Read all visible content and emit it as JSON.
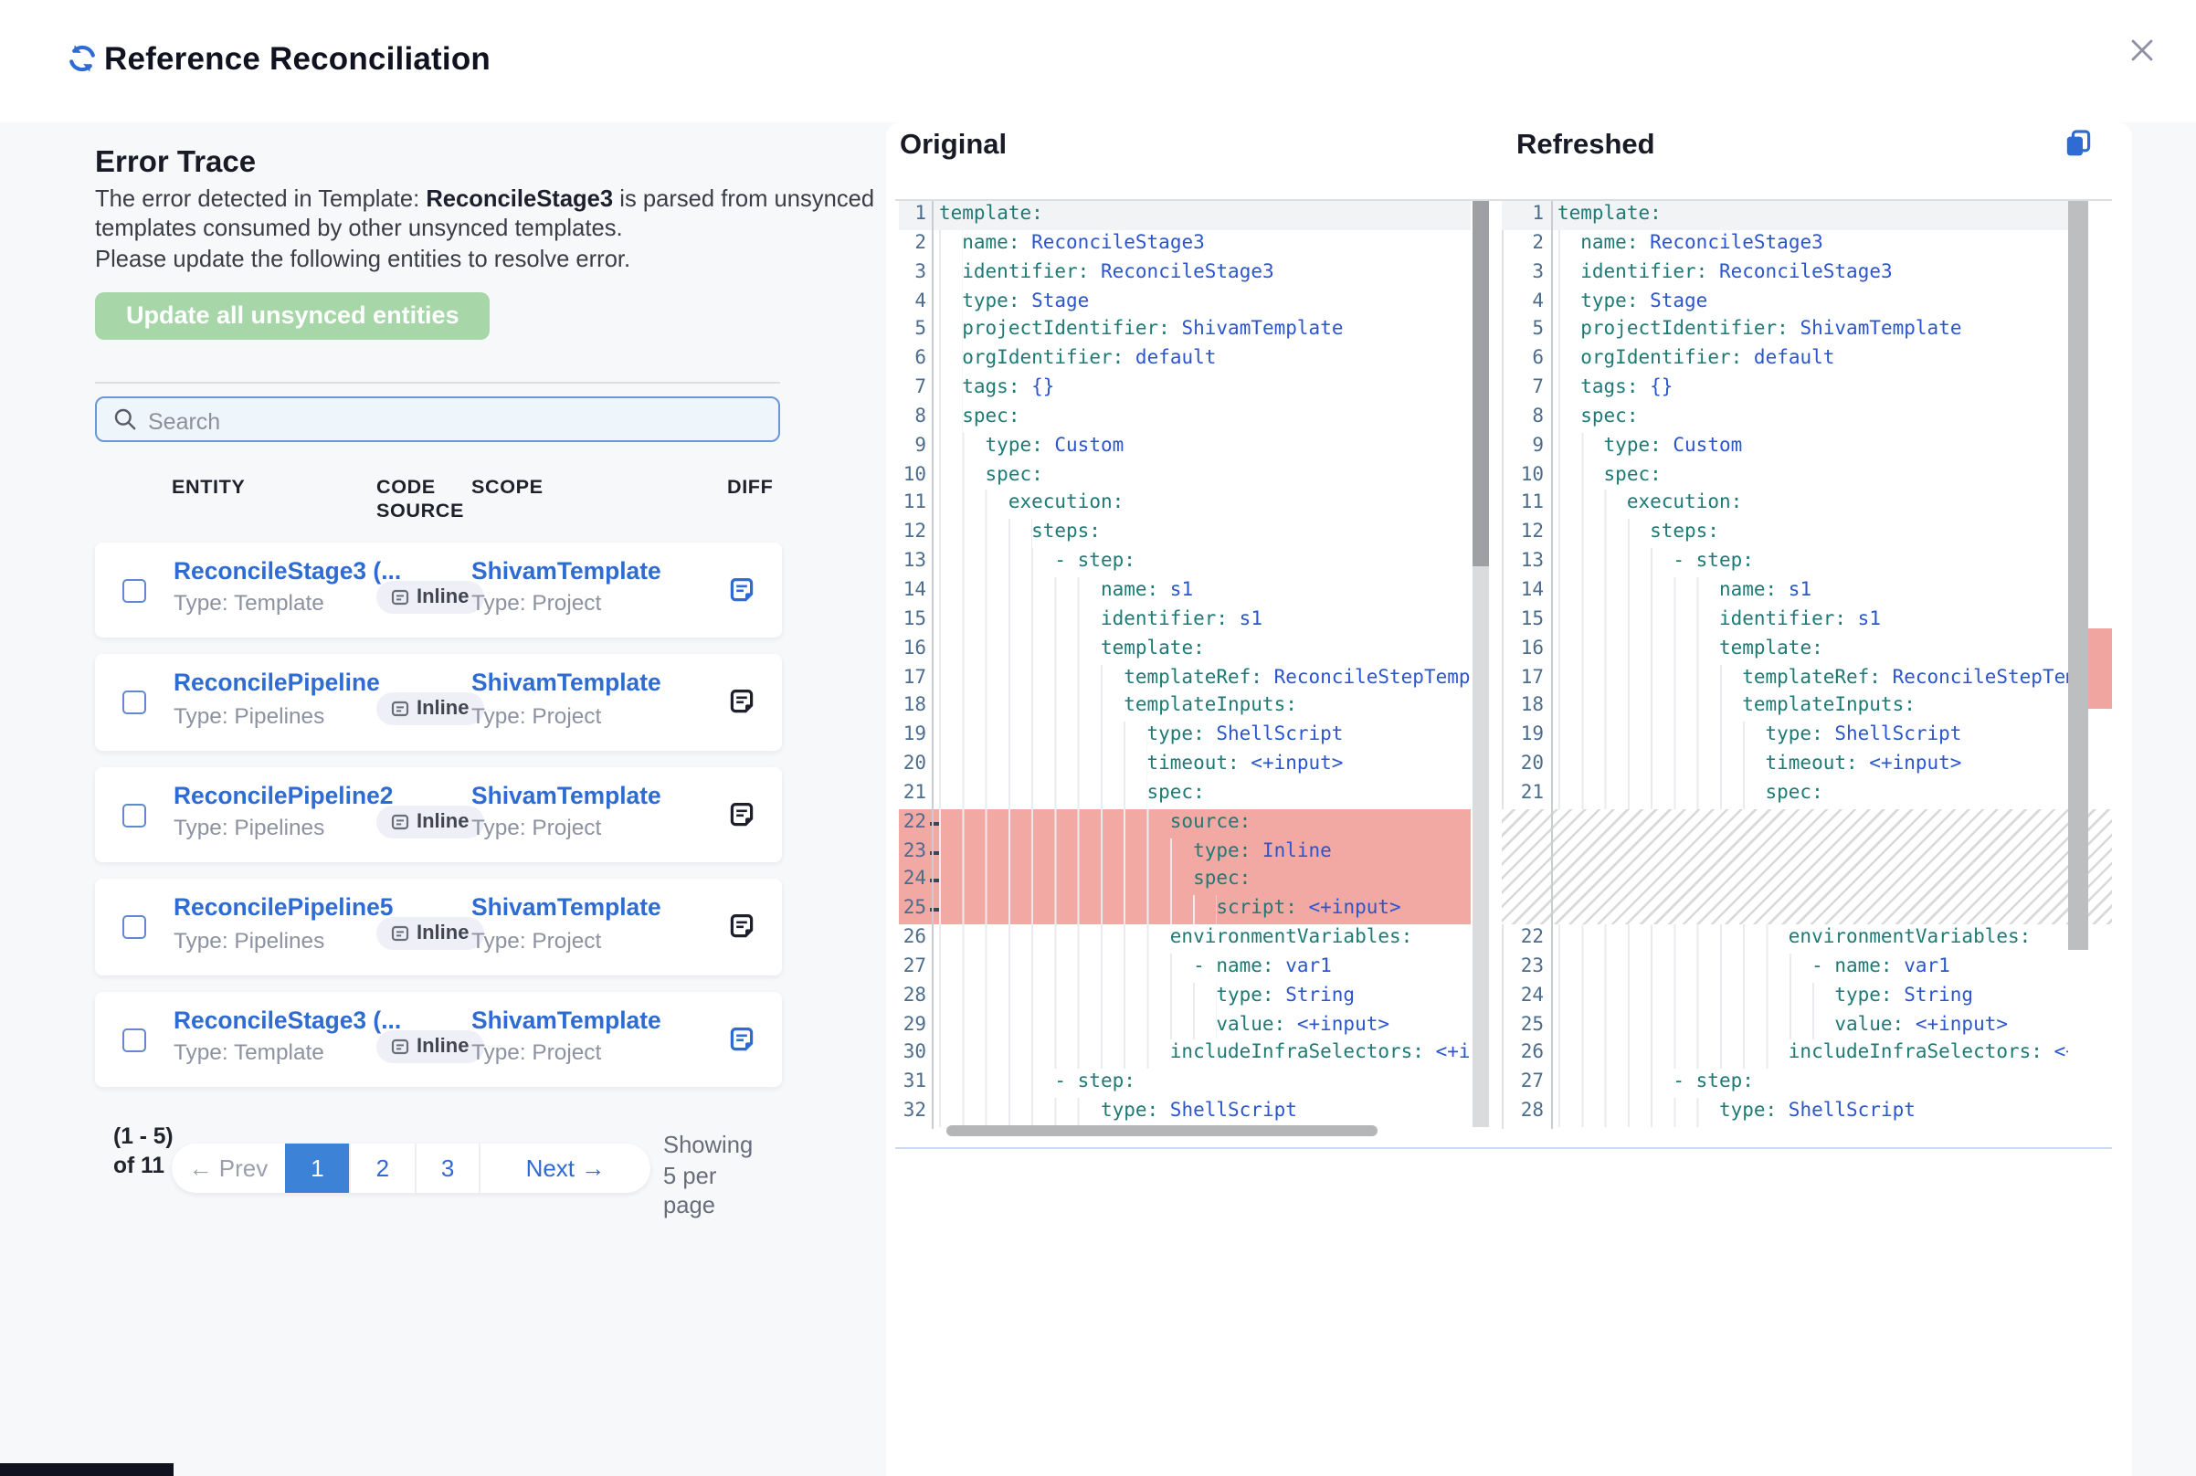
{
  "header": {
    "title": "Reference Reconciliation"
  },
  "error_trace": {
    "title": "Error Trace",
    "description_prefix": "The error detected in Template: ",
    "template_name": "ReconcileStage3",
    "description_suffix": " is parsed from unsynced templates consumed by other unsynced templates.",
    "instruction": "Please update the following entities to resolve error.",
    "update_button_label": "Update all unsynced entities"
  },
  "search": {
    "placeholder": "Search"
  },
  "table": {
    "headers": {
      "entity": "ENTITY",
      "code_source": "CODE SOURCE",
      "scope": "SCOPE",
      "diff": "DIFF"
    },
    "rows": [
      {
        "entity_name": "ReconcileStage3 (...",
        "entity_type": "Type: Template",
        "code_source": "Inline",
        "scope_name": "ShivamTemplate",
        "scope_type": "Type: Project",
        "diff_icon_color": "#2e6bd2"
      },
      {
        "entity_name": "ReconcilePipeline",
        "entity_type": "Type: Pipelines",
        "code_source": "Inline",
        "scope_name": "ShivamTemplate",
        "scope_type": "Type: Project",
        "diff_icon_color": "#1d1f2c"
      },
      {
        "entity_name": "ReconcilePipeline2",
        "entity_type": "Type: Pipelines",
        "code_source": "Inline",
        "scope_name": "ShivamTemplate",
        "scope_type": "Type: Project",
        "diff_icon_color": "#1d1f2c"
      },
      {
        "entity_name": "ReconcilePipeline5",
        "entity_type": "Type: Pipelines",
        "code_source": "Inline",
        "scope_name": "ShivamTemplate",
        "scope_type": "Type: Project",
        "diff_icon_color": "#1d1f2c"
      },
      {
        "entity_name": "ReconcileStage3 (...",
        "entity_type": "Type: Template",
        "code_source": "Inline",
        "scope_name": "ShivamTemplate",
        "scope_type": "Type: Project",
        "diff_icon_color": "#2e6bd2"
      }
    ]
  },
  "pagination": {
    "summary": "(1 - 5) of 11",
    "prev_label": "← Prev",
    "pages": [
      "1",
      "2",
      "3"
    ],
    "active_page": "1",
    "next_label": "Next →",
    "per_page_note": "Showing 5 per page"
  },
  "diff": {
    "original": {
      "title": "Original",
      "lines": [
        {
          "n": 1,
          "i": 0,
          "k": "template"
        },
        {
          "n": 2,
          "i": 2,
          "k": "name",
          "v": "ReconcileStage3"
        },
        {
          "n": 3,
          "i": 2,
          "k": "identifier",
          "v": "ReconcileStage3"
        },
        {
          "n": 4,
          "i": 2,
          "k": "type",
          "v": "Stage"
        },
        {
          "n": 5,
          "i": 2,
          "k": "projectIdentifier",
          "v": "ShivamTemplate"
        },
        {
          "n": 6,
          "i": 2,
          "k": "orgIdentifier",
          "v": "default"
        },
        {
          "n": 7,
          "i": 2,
          "k": "tags",
          "v": "{}"
        },
        {
          "n": 8,
          "i": 2,
          "k": "spec"
        },
        {
          "n": 9,
          "i": 4,
          "k": "type",
          "v": "Custom"
        },
        {
          "n": 10,
          "i": 4,
          "k": "spec"
        },
        {
          "n": 11,
          "i": 6,
          "k": "execution"
        },
        {
          "n": 12,
          "i": 8,
          "k": "steps"
        },
        {
          "n": 13,
          "i": 10,
          "dash": true,
          "k": "step"
        },
        {
          "n": 14,
          "i": 14,
          "k": "name",
          "v": "s1"
        },
        {
          "n": 15,
          "i": 14,
          "k": "identifier",
          "v": "s1"
        },
        {
          "n": 16,
          "i": 14,
          "k": "template"
        },
        {
          "n": 17,
          "i": 16,
          "k": "templateRef",
          "v": "ReconcileStepTemplate"
        },
        {
          "n": 18,
          "i": 16,
          "k": "templateInputs"
        },
        {
          "n": 19,
          "i": 18,
          "k": "type",
          "v": "ShellScript"
        },
        {
          "n": 20,
          "i": 18,
          "k": "timeout",
          "v": "<+input>"
        },
        {
          "n": 21,
          "i": 18,
          "k": "spec"
        },
        {
          "n": 22,
          "i": 20,
          "k": "source",
          "removed": true
        },
        {
          "n": 23,
          "i": 22,
          "k": "type",
          "v": "Inline",
          "removed": true
        },
        {
          "n": 24,
          "i": 22,
          "k": "spec",
          "removed": true
        },
        {
          "n": 25,
          "i": 24,
          "k": "script",
          "v": "<+input>",
          "removed": true
        },
        {
          "n": 26,
          "i": 20,
          "k": "environmentVariables"
        },
        {
          "n": 27,
          "i": 22,
          "dash": true,
          "k": "name",
          "v": "var1"
        },
        {
          "n": 28,
          "i": 24,
          "k": "type",
          "v": "String"
        },
        {
          "n": 29,
          "i": 24,
          "k": "value",
          "v": "<+input>"
        },
        {
          "n": 30,
          "i": 20,
          "k": "includeInfraSelectors",
          "v": "<+input>"
        },
        {
          "n": 31,
          "i": 10,
          "dash": true,
          "k": "step"
        },
        {
          "n": 32,
          "i": 14,
          "k": "type",
          "v": "ShellScript"
        }
      ]
    },
    "refreshed": {
      "title": "Refreshed",
      "lines": [
        {
          "n": 1,
          "i": 0,
          "k": "template"
        },
        {
          "n": 2,
          "i": 2,
          "k": "name",
          "v": "ReconcileStage3"
        },
        {
          "n": 3,
          "i": 2,
          "k": "identifier",
          "v": "ReconcileStage3"
        },
        {
          "n": 4,
          "i": 2,
          "k": "type",
          "v": "Stage"
        },
        {
          "n": 5,
          "i": 2,
          "k": "projectIdentifier",
          "v": "ShivamTemplate"
        },
        {
          "n": 6,
          "i": 2,
          "k": "orgIdentifier",
          "v": "default"
        },
        {
          "n": 7,
          "i": 2,
          "k": "tags",
          "v": "{}"
        },
        {
          "n": 8,
          "i": 2,
          "k": "spec"
        },
        {
          "n": 9,
          "i": 4,
          "k": "type",
          "v": "Custom"
        },
        {
          "n": 10,
          "i": 4,
          "k": "spec"
        },
        {
          "n": 11,
          "i": 6,
          "k": "execution"
        },
        {
          "n": 12,
          "i": 8,
          "k": "steps"
        },
        {
          "n": 13,
          "i": 10,
          "dash": true,
          "k": "step"
        },
        {
          "n": 14,
          "i": 14,
          "k": "name",
          "v": "s1"
        },
        {
          "n": 15,
          "i": 14,
          "k": "identifier",
          "v": "s1"
        },
        {
          "n": 16,
          "i": 14,
          "k": "template"
        },
        {
          "n": 17,
          "i": 16,
          "k": "templateRef",
          "v": "ReconcileStepTemplate"
        },
        {
          "n": 18,
          "i": 16,
          "k": "templateInputs"
        },
        {
          "n": 19,
          "i": 18,
          "k": "type",
          "v": "ShellScript"
        },
        {
          "n": 20,
          "i": 18,
          "k": "timeout",
          "v": "<+input>"
        },
        {
          "n": 21,
          "i": 18,
          "k": "spec"
        },
        {
          "gap": true
        },
        {
          "n": 22,
          "i": 20,
          "k": "environmentVariables"
        },
        {
          "n": 23,
          "i": 22,
          "dash": true,
          "k": "name",
          "v": "var1"
        },
        {
          "n": 24,
          "i": 24,
          "k": "type",
          "v": "String"
        },
        {
          "n": 25,
          "i": 24,
          "k": "value",
          "v": "<+input>"
        },
        {
          "n": 26,
          "i": 20,
          "k": "includeInfraSelectors",
          "v": "<+input>"
        },
        {
          "n": 27,
          "i": 10,
          "dash": true,
          "k": "step"
        },
        {
          "n": 28,
          "i": 14,
          "k": "type",
          "v": "ShellScript"
        }
      ]
    }
  },
  "icons": {
    "header": "sync-icon",
    "close": "close-icon",
    "search": "search-icon",
    "code_source": "inline-entity-icon",
    "diff": "document-diff-icon",
    "copy": "copy-icon"
  },
  "colors": {
    "accent_blue": "#2e6bd2",
    "active_page_blue": "#3c82d6",
    "button_green": "#a7d7a8",
    "removed_line_red": "#f2a9a3",
    "yaml_key_teal": "#1d7a74",
    "yaml_value_blue": "#2b55cf",
    "line_number": "#4c6c8e"
  }
}
